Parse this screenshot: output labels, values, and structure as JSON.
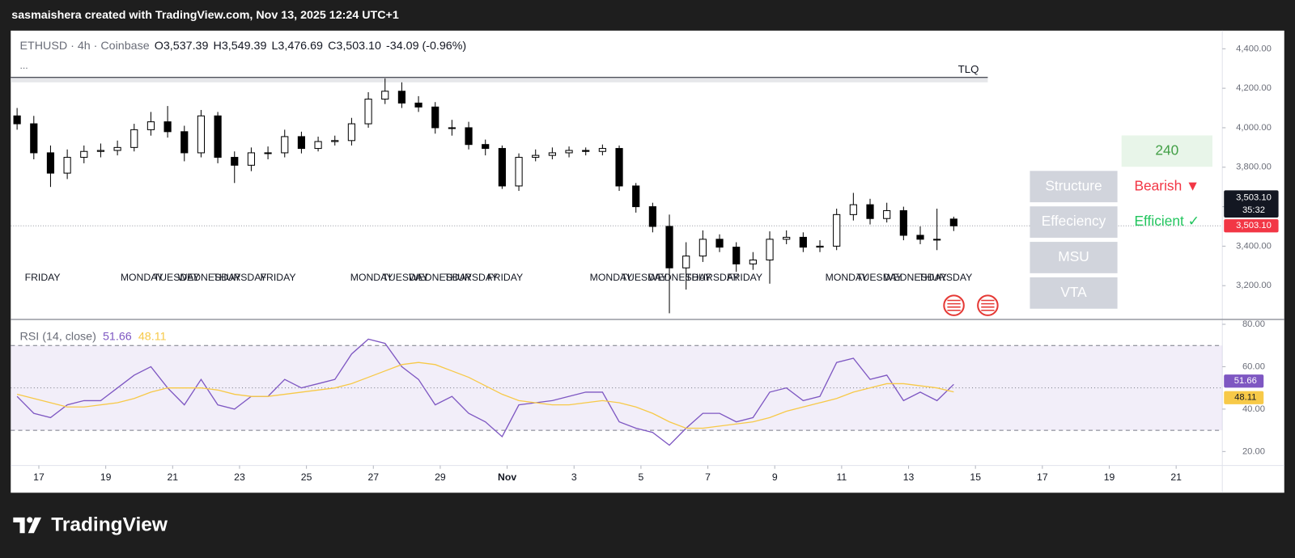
{
  "header": {
    "attribution": "sasmaishera created with TradingView.com, Nov 13, 2025 12:24 UTC+1"
  },
  "footer": {
    "logo": "TradingView"
  },
  "widget": {
    "timeframe": "240",
    "rows": [
      {
        "label": "Structure",
        "status": "Bearish ▼",
        "status_color": "#f23645"
      },
      {
        "label": "Effeciency",
        "status": "Efficient ✓",
        "status_color": "#22c55e"
      },
      {
        "label": "MSU"
      },
      {
        "label": "VTA"
      }
    ]
  },
  "chart_data": [
    {
      "type": "candlestick",
      "title": "ETHUSD · 4h · Coinbase",
      "legend": [
        {
          "key": "O",
          "value": "3,537.39"
        },
        {
          "key": "H",
          "value": "3,549.39"
        },
        {
          "key": "L",
          "value": "3,476.69"
        },
        {
          "key": "C",
          "value": "3,503.10"
        }
      ],
      "change": "-34.09 (-0.96%)",
      "more": "...",
      "last_price_label": "3,503.10",
      "countdown": "35:32",
      "up_color": "#ffffff",
      "down_color": "#000000",
      "border_color": "#000000",
      "level": {
        "label": "TLQ",
        "value": 4255
      },
      "x": [
        0.35,
        0.85,
        1.35,
        1.85,
        2.35,
        2.85,
        3.35,
        3.85,
        4.35,
        4.85,
        5.35,
        5.85,
        6.35,
        6.85,
        7.35,
        7.85,
        8.35,
        8.85,
        9.35,
        9.85,
        10.35,
        10.85,
        11.35,
        11.85,
        12.35,
        12.85,
        13.35,
        13.85,
        14.35,
        14.85,
        15.35,
        15.85,
        16.35,
        16.85,
        17.35,
        17.85,
        18.35,
        18.85,
        19.35,
        19.85,
        20.35,
        20.85,
        21.35,
        21.85,
        22.35,
        22.85,
        23.35,
        23.85,
        24.35,
        24.85,
        25.35,
        25.85,
        26.35,
        26.85,
        27.35,
        27.85,
        28.35
      ],
      "open": [
        4060,
        4020,
        3873,
        3770,
        3850,
        3880,
        3885,
        3900,
        3990,
        4030,
        3980,
        3873,
        4060,
        3850,
        3810,
        3873,
        3873,
        3955,
        3895,
        3930,
        3935,
        4020,
        4145,
        4185,
        4125,
        4105,
        4000,
        4000,
        3915,
        3895,
        3705,
        3850,
        3860,
        3873,
        3885,
        3880,
        3895,
        3705,
        3600,
        3500,
        3290,
        3350,
        3435,
        3395,
        3310,
        3330,
        3435,
        3445,
        3395,
        3400,
        3560,
        3610,
        3540,
        3580,
        3455,
        3435,
        3537.39
      ],
      "high": [
        4100,
        4060,
        3910,
        3890,
        3910,
        3920,
        3935,
        4020,
        4080,
        4110,
        4010,
        4090,
        4080,
        3880,
        3900,
        3905,
        3990,
        3980,
        3955,
        3960,
        4050,
        4180,
        4250,
        4230,
        4160,
        4130,
        4040,
        4030,
        3940,
        3910,
        3870,
        3890,
        3900,
        3905,
        3900,
        3915,
        3910,
        3720,
        3620,
        3560,
        3420,
        3480,
        3460,
        3420,
        3370,
        3475,
        3480,
        3470,
        3430,
        3590,
        3670,
        3640,
        3620,
        3600,
        3500,
        3590,
        3549.39
      ],
      "low": [
        3990,
        3840,
        3700,
        3740,
        3820,
        3850,
        3860,
        3880,
        3960,
        3950,
        3830,
        3850,
        3820,
        3720,
        3780,
        3840,
        3850,
        3870,
        3880,
        3910,
        3910,
        4000,
        4120,
        4100,
        4080,
        3970,
        3960,
        3890,
        3860,
        3690,
        3680,
        3830,
        3840,
        3850,
        3860,
        3860,
        3680,
        3570,
        3470,
        3060,
        3180,
        3320,
        3370,
        3270,
        3280,
        3210,
        3410,
        3370,
        3370,
        3380,
        3530,
        3510,
        3520,
        3430,
        3410,
        3380,
        3476.69
      ],
      "close": [
        4020,
        3873,
        3770,
        3850,
        3880,
        3885,
        3900,
        3990,
        4030,
        3980,
        3873,
        4060,
        3850,
        3810,
        3873,
        3873,
        3955,
        3895,
        3930,
        3935,
        4020,
        4145,
        4185,
        4125,
        4105,
        4000,
        4000,
        3915,
        3895,
        3705,
        3850,
        3860,
        3873,
        3885,
        3880,
        3895,
        3705,
        3600,
        3500,
        3290,
        3350,
        3435,
        3395,
        3310,
        3330,
        3435,
        3445,
        3395,
        3400,
        3560,
        3610,
        3540,
        3580,
        3455,
        3435,
        3435,
        3503.1
      ],
      "annotations": [
        {
          "text": "FRIDAY",
          "x": 0.58
        },
        {
          "text": "MONDAY",
          "x": 3.44
        },
        {
          "text": "TUESDAY",
          "x": 4.43
        },
        {
          "text": "WEDNESDAY",
          "x": 5.15
        },
        {
          "text": "THURSDAY",
          "x": 6.21
        },
        {
          "text": "FRIDAY",
          "x": 7.62
        },
        {
          "text": "MONDAY",
          "x": 10.31
        },
        {
          "text": "TUESDAY",
          "x": 11.27
        },
        {
          "text": "WEDNESDAY",
          "x": 12.06
        },
        {
          "text": "THURSDAY",
          "x": 13.12
        },
        {
          "text": "FRIDAY",
          "x": 14.41
        },
        {
          "text": "MONDAY",
          "x": 17.47
        },
        {
          "text": "TUESDAY",
          "x": 18.41
        },
        {
          "text": "WEDNESDAY",
          "x": 19.22
        },
        {
          "text": "THURSDAY",
          "x": 20.33
        },
        {
          "text": "FRIDAY",
          "x": 21.57
        },
        {
          "text": "MONDAY",
          "x": 24.51
        },
        {
          "text": "TUESDAY",
          "x": 25.44
        },
        {
          "text": "WEDNESDAY",
          "x": 26.26
        },
        {
          "text": "THURSDAY",
          "x": 27.3
        }
      ],
      "xlim": [
        0.16,
        36.38
      ],
      "ylim": [
        3033,
        4492
      ],
      "yticks": [
        {
          "value": 3200,
          "label": "3,200.00"
        },
        {
          "value": 3400,
          "label": "3,400.00"
        },
        {
          "value": 3600,
          "label": "3,600.00"
        },
        {
          "value": 3800,
          "label": "3,800.00"
        },
        {
          "value": 4000,
          "label": "4,000.00"
        },
        {
          "value": 4200,
          "label": "4,200.00"
        },
        {
          "value": 4400,
          "label": "4,400.00"
        }
      ]
    },
    {
      "type": "line",
      "title": "RSI (14, close)",
      "x": [
        0.35,
        0.85,
        1.35,
        1.85,
        2.35,
        2.85,
        3.35,
        3.85,
        4.35,
        4.85,
        5.35,
        5.85,
        6.35,
        6.85,
        7.35,
        7.85,
        8.35,
        8.85,
        9.35,
        9.85,
        10.35,
        10.85,
        11.35,
        11.85,
        12.35,
        12.85,
        13.35,
        13.85,
        14.35,
        14.85,
        15.35,
        15.85,
        16.35,
        16.85,
        17.35,
        17.85,
        18.35,
        18.85,
        19.35,
        19.85,
        20.35,
        20.85,
        21.35,
        21.85,
        22.35,
        22.85,
        23.35,
        23.85,
        24.35,
        24.85,
        25.35,
        25.85,
        26.35,
        26.85,
        27.35,
        27.85,
        28.35
      ],
      "series": [
        {
          "color": "#7e57c2",
          "values": [
            46,
            38,
            36,
            42,
            44,
            44,
            50,
            56,
            60,
            50,
            42,
            54,
            42,
            40,
            46,
            46,
            54,
            50,
            52,
            54,
            66,
            73,
            71,
            60,
            54,
            42,
            46,
            38,
            34,
            27,
            42,
            43,
            44,
            46,
            48,
            48,
            34,
            31,
            29,
            23,
            31,
            38,
            38,
            34,
            36,
            48,
            50,
            44,
            46,
            62,
            64,
            54,
            56,
            44,
            48,
            44,
            51.66
          ]
        },
        {
          "color": "#f7c948",
          "values": [
            47,
            45,
            43,
            41,
            41,
            42,
            43,
            45,
            48,
            50,
            50,
            50,
            49,
            47,
            46,
            46,
            47,
            48,
            49,
            50,
            52,
            55,
            58,
            61,
            62,
            61,
            58,
            55,
            51,
            47,
            44,
            43,
            42,
            42,
            43,
            44,
            43,
            41,
            38,
            34,
            31,
            31,
            32,
            33,
            34,
            36,
            39,
            41,
            43,
            45,
            48,
            50,
            52,
            52,
            51,
            50,
            48.11
          ]
        }
      ],
      "bands": [
        30,
        70
      ],
      "midline": 50,
      "band_color": "#7e57c2",
      "xlim": [
        0.16,
        36.38
      ],
      "ylim": [
        13.8,
        81.9
      ],
      "yticks": [
        {
          "value": 20,
          "label": "20.00"
        },
        {
          "value": 40,
          "label": "40.00"
        },
        {
          "value": 60,
          "label": "60.00"
        },
        {
          "value": 80,
          "label": "80.00"
        }
      ],
      "xticks": [
        {
          "value": 1,
          "label": "17"
        },
        {
          "value": 3,
          "label": "19"
        },
        {
          "value": 5,
          "label": "21"
        },
        {
          "value": 7,
          "label": "23"
        },
        {
          "value": 9,
          "label": "25"
        },
        {
          "value": 11,
          "label": "27"
        },
        {
          "value": 13,
          "label": "29"
        },
        {
          "value": 15,
          "label": "Nov"
        },
        {
          "value": 17,
          "label": "3"
        },
        {
          "value": 19,
          "label": "5"
        },
        {
          "value": 21,
          "label": "7"
        },
        {
          "value": 23,
          "label": "9"
        },
        {
          "value": 25,
          "label": "11"
        },
        {
          "value": 27,
          "label": "13"
        },
        {
          "value": 29,
          "label": "15"
        },
        {
          "value": 31,
          "label": "17"
        },
        {
          "value": 33,
          "label": "19"
        },
        {
          "value": 35,
          "label": "21"
        }
      ]
    }
  ]
}
